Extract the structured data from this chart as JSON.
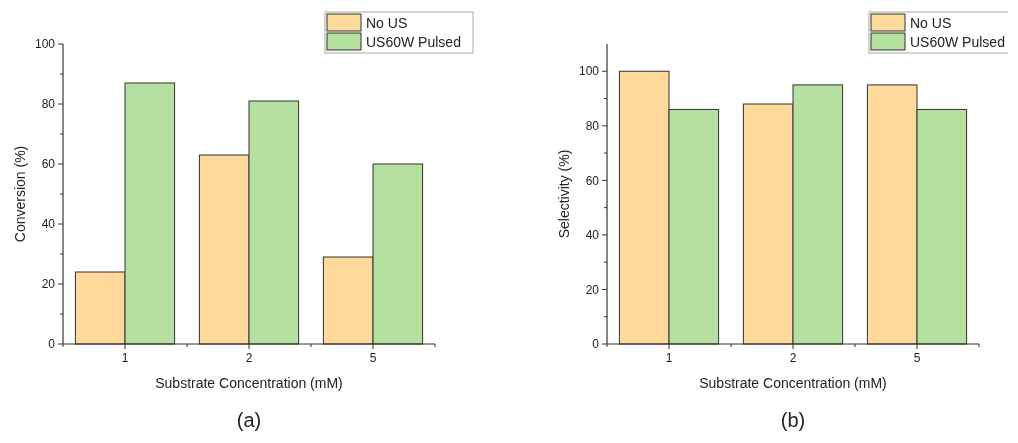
{
  "chart_data": [
    {
      "type": "bar",
      "title": "(a)",
      "xlabel": "Substrate Concentration (mM)",
      "ylabel": "Conversion (%)",
      "categories": [
        "1",
        "2",
        "5"
      ],
      "series": [
        {
          "name": "No US",
          "color": "#fdd99b",
          "values": [
            24,
            63,
            29
          ]
        },
        {
          "name": "US60W Pulsed",
          "color": "#b6e0a0",
          "values": [
            87,
            81,
            60
          ]
        }
      ],
      "ylim": [
        0,
        100
      ],
      "yticks": [
        0,
        {
          "value": 10,
          "label": null
        },
        20,
        {
          "value": 30,
          "label": null
        },
        40,
        {
          "value": 50,
          "label": null
        },
        60,
        {
          "value": 70,
          "label": null
        },
        80,
        {
          "value": 90,
          "label": null
        },
        100
      ],
      "grid": false,
      "legend": "top right"
    },
    {
      "type": "bar",
      "title": "(b)",
      "xlabel": "Substrate Concentration (mM)",
      "ylabel": "Selectivity (%)",
      "categories": [
        "1",
        "2",
        "5"
      ],
      "series": [
        {
          "name": "No US",
          "color": "#fdd99b",
          "values": [
            100,
            88,
            95
          ]
        },
        {
          "name": "US60W Pulsed",
          "color": "#b6e0a0",
          "values": [
            86,
            95,
            86
          ]
        }
      ],
      "ylim": [
        0,
        110
      ],
      "yticks": [
        0,
        {
          "value": 10,
          "label": null
        },
        20,
        {
          "value": 30,
          "label": null
        },
        40,
        {
          "value": 50,
          "label": null
        },
        60,
        {
          "value": 70,
          "label": null
        },
        80,
        {
          "value": 90,
          "label": null
        },
        100
      ],
      "grid": false,
      "legend": "top right"
    }
  ]
}
